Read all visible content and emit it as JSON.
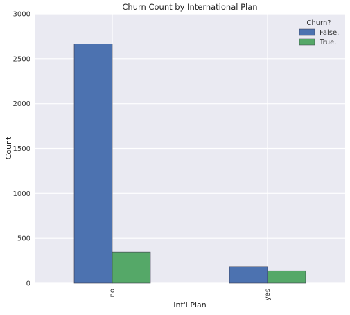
{
  "chart_data": {
    "type": "bar",
    "title": "Churn Count by International Plan",
    "xlabel": "Int'l Plan",
    "ylabel": "Count",
    "categories": [
      "no",
      "yes"
    ],
    "series": [
      {
        "name": "False.",
        "values": [
          2664,
          186
        ],
        "color": "#4c72b0"
      },
      {
        "name": "True.",
        "values": [
          346,
          137
        ],
        "color": "#55a868"
      }
    ],
    "ylim": [
      0,
      3000
    ],
    "yticks": [
      0,
      500,
      1000,
      1500,
      2000,
      2500,
      3000
    ],
    "grid": true,
    "legend": {
      "title": "Churn?",
      "placement": "top-right"
    },
    "background": "#eaeaf2"
  }
}
